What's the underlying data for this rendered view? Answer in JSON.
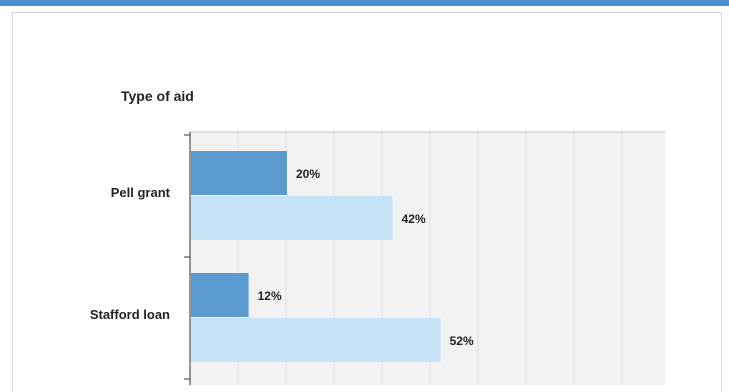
{
  "chart_data": {
    "type": "bar",
    "orientation": "horizontal",
    "title": "",
    "ylabel": "Type of aid",
    "categories": [
      "Pell grant",
      "Stafford loan"
    ],
    "series": [
      {
        "values": [
          20,
          12
        ],
        "labels": [
          "20%",
          "12%"
        ],
        "color": "#5b9bd0"
      },
      {
        "values": [
          42,
          52
        ],
        "labels": [
          "42%",
          "52%"
        ],
        "color": "#c6e2f6"
      }
    ],
    "xlim": [
      0,
      100
    ],
    "grid": true,
    "colors": {
      "top_bar": "#4a90d0",
      "plot_background": "#f2f2f2",
      "grid": "#dcdce6",
      "axis": "#333333"
    }
  }
}
